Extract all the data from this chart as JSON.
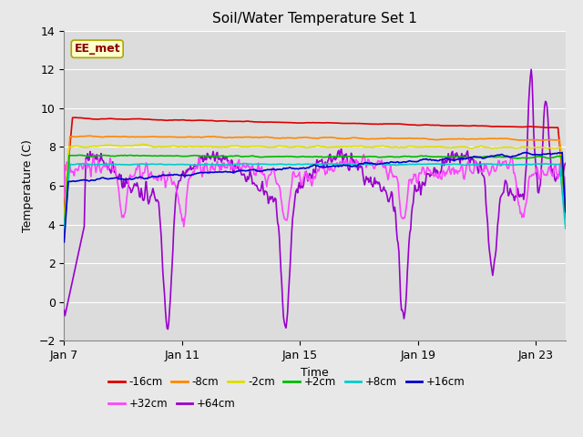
{
  "title": "Soil/Water Temperature Set 1",
  "xlabel": "Time",
  "ylabel": "Temperature (C)",
  "ylim": [
    -2,
    14
  ],
  "yticks": [
    -2,
    0,
    2,
    4,
    6,
    8,
    10,
    12,
    14
  ],
  "xlim": [
    0,
    17
  ],
  "xtick_positions": [
    0,
    4,
    8,
    12,
    16
  ],
  "xtick_labels": [
    "Jan 7",
    "Jan 11",
    "Jan 15",
    "Jan 19",
    "Jan 23"
  ],
  "annotation_text": "EE_met",
  "annotation_color": "#8b0000",
  "annotation_bg": "#ffffcc",
  "annotation_edge": "#aaa800",
  "fig_bg": "#e8e8e8",
  "plot_bg": "#dcdcdc",
  "grid_color": "#ffffff",
  "series": [
    {
      "label": "-16cm",
      "color": "#dd0000",
      "lw": 1.2,
      "zorder": 5
    },
    {
      "label": "-8cm",
      "color": "#ff8800",
      "lw": 1.2,
      "zorder": 5
    },
    {
      "label": "-2cm",
      "color": "#dddd00",
      "lw": 1.2,
      "zorder": 5
    },
    {
      "label": "+2cm",
      "color": "#00bb00",
      "lw": 1.2,
      "zorder": 5
    },
    {
      "label": "+8cm",
      "color": "#00cccc",
      "lw": 1.2,
      "zorder": 5
    },
    {
      "label": "+16cm",
      "color": "#0000cc",
      "lw": 1.2,
      "zorder": 5
    },
    {
      "label": "+32cm",
      "color": "#ff44ff",
      "lw": 1.2,
      "zorder": 4
    },
    {
      "label": "+64cm",
      "color": "#9900cc",
      "lw": 1.2,
      "zorder": 3
    }
  ],
  "legend_ncol_row1": 6,
  "legend_ncol_row2": 2,
  "title_fontsize": 11,
  "axis_fontsize": 9,
  "tick_fontsize": 9
}
